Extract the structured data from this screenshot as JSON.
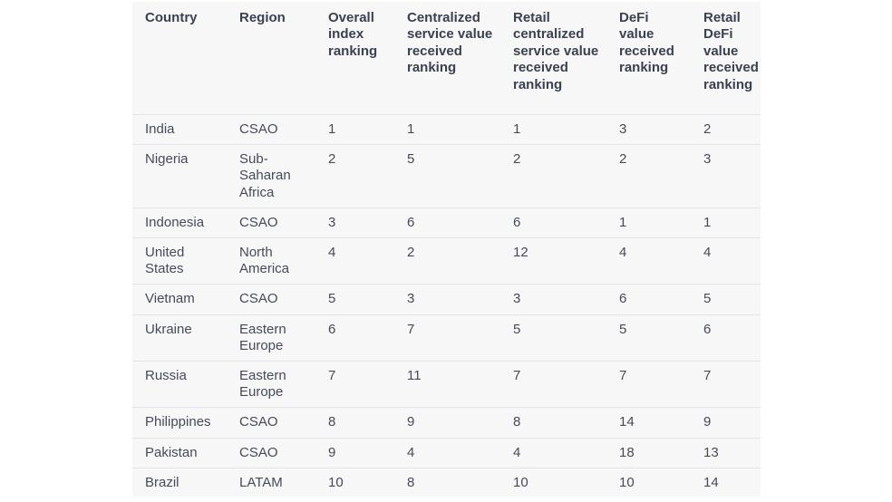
{
  "table": {
    "headers": [
      "Country",
      "Region",
      "Overall index ranking",
      "Centralized service value received ranking",
      "Retail centralized service value received ranking",
      "DeFi value received ranking",
      "Retail DeFi value received ranking"
    ],
    "rows": [
      [
        "India",
        "CSAO",
        "1",
        "1",
        "1",
        "3",
        "2"
      ],
      [
        "Nigeria",
        "Sub-Saharan Africa",
        "2",
        "5",
        "2",
        "2",
        "3"
      ],
      [
        "Indonesia",
        "CSAO",
        "3",
        "6",
        "6",
        "1",
        "1"
      ],
      [
        "United States",
        "North America",
        "4",
        "2",
        "12",
        "4",
        "4"
      ],
      [
        "Vietnam",
        "CSAO",
        "5",
        "3",
        "3",
        "6",
        "5"
      ],
      [
        "Ukraine",
        "Eastern Europe",
        "6",
        "7",
        "5",
        "5",
        "6"
      ],
      [
        "Russia",
        "Eastern Europe",
        "7",
        "11",
        "7",
        "7",
        "7"
      ],
      [
        "Philippines",
        "CSAO",
        "8",
        "9",
        "8",
        "14",
        "9"
      ],
      [
        "Pakistan",
        "CSAO",
        "9",
        "4",
        "4",
        "18",
        "13"
      ],
      [
        "Brazil",
        "LATAM",
        "10",
        "8",
        "10",
        "10",
        "14"
      ]
    ]
  },
  "colors": {
    "table_background": "#f7f7f8",
    "header_text": "#3a4150",
    "cell_text": "#454b59",
    "row_divider": "#e3e4e8"
  }
}
